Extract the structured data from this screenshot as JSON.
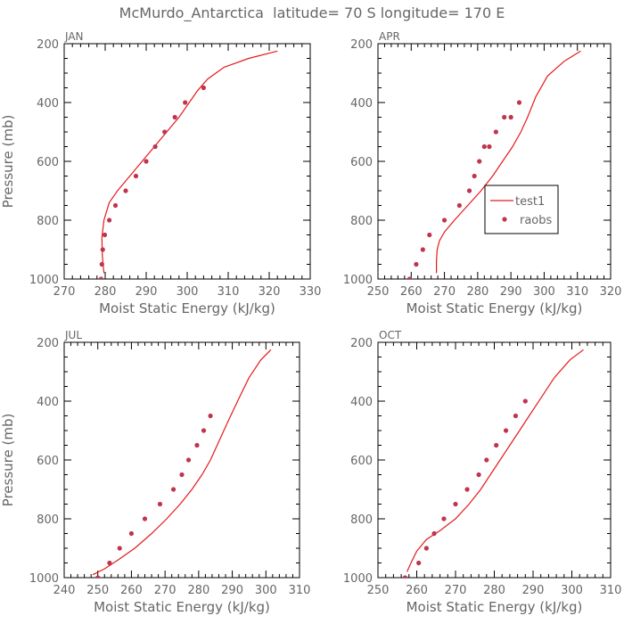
{
  "title": "McMurdo_Antarctica  latitude= 70 S longitude= 170 E",
  "colors": {
    "line": "#e41a1c",
    "markers": "#c0344d"
  },
  "legend": {
    "entries": [
      "test1",
      "raobs"
    ],
    "panel": "APR",
    "placement": "center-right"
  },
  "chart_data": [
    {
      "type": "line",
      "title": "JAN",
      "xlabel": "Moist Static Energy (kJ/kg)",
      "ylabel": "Pressure (mb)",
      "xlim": [
        270,
        330
      ],
      "ylim": [
        200,
        1000
      ],
      "xticks": [
        270,
        280,
        290,
        300,
        310,
        320,
        330
      ],
      "yticks": [
        200,
        400,
        600,
        800,
        1000
      ],
      "y_inverted": true,
      "series": [
        {
          "name": "test1",
          "style": "line",
          "x": [
            279.7,
            279.3,
            279.2,
            279.7,
            281.0,
            283.0,
            286.0,
            289.0,
            292.0,
            295.0,
            298.0,
            300.5,
            302.5,
            305.0,
            309.0,
            315.0,
            322.0
          ],
          "y": [
            980,
            920,
            860,
            800,
            740,
            700,
            650,
            600,
            550,
            500,
            450,
            400,
            360,
            320,
            280,
            250,
            225
          ]
        },
        {
          "name": "raobs",
          "style": "markers",
          "x": [
            279.0,
            279.2,
            279.4,
            279.9,
            281.0,
            282.5,
            285.0,
            287.5,
            290.0,
            292.2,
            294.5,
            297.0,
            299.5,
            304.0
          ],
          "y": [
            1000,
            950,
            900,
            850,
            800,
            750,
            700,
            650,
            600,
            550,
            500,
            450,
            400,
            350
          ]
        }
      ]
    },
    {
      "type": "line",
      "title": "APR",
      "xlabel": "Moist Static Energy (kJ/kg)",
      "ylabel": "",
      "xlim": [
        250,
        320
      ],
      "ylim": [
        200,
        1000
      ],
      "xticks": [
        250,
        260,
        270,
        280,
        290,
        300,
        310,
        320
      ],
      "yticks": [
        200,
        400,
        600,
        800,
        1000
      ],
      "y_inverted": true,
      "series": [
        {
          "name": "test1",
          "style": "line",
          "x": [
            267.6,
            267.6,
            267.8,
            268.5,
            270.0,
            273.0,
            277.0,
            281.0,
            284.5,
            287.5,
            290.5,
            293.0,
            295.0,
            297.5,
            301.0,
            306.0,
            311.0
          ],
          "y": [
            980,
            940,
            900,
            870,
            840,
            800,
            750,
            700,
            650,
            600,
            550,
            500,
            450,
            380,
            310,
            260,
            225
          ]
        },
        {
          "name": "raobs",
          "style": "markers",
          "x": [
            259.5,
            261.5,
            263.5,
            265.5,
            270.0,
            274.5,
            277.5,
            279.0,
            280.5,
            282.0,
            283.5,
            285.5,
            288.0,
            290.0,
            292.5
          ],
          "y": [
            1000,
            950,
            900,
            850,
            800,
            750,
            700,
            650,
            600,
            550,
            550,
            500,
            450,
            450,
            400
          ]
        }
      ]
    },
    {
      "type": "line",
      "title": "JUL",
      "xlabel": "Moist Static Energy (kJ/kg)",
      "ylabel": "Pressure (mb)",
      "xlim": [
        240,
        310
      ],
      "ylim": [
        200,
        1000
      ],
      "xticks": [
        240,
        250,
        260,
        270,
        280,
        290,
        300,
        310
      ],
      "yticks": [
        200,
        400,
        600,
        800,
        1000
      ],
      "y_inverted": true,
      "series": [
        {
          "name": "test1",
          "style": "line",
          "x": [
            248.5,
            252.0,
            256.0,
            261.0,
            266.0,
            270.5,
            274.5,
            278.0,
            281.0,
            283.5,
            285.5,
            287.5,
            289.5,
            292.0,
            295.0,
            298.5,
            301.5
          ],
          "y": [
            990,
            970,
            940,
            900,
            850,
            800,
            750,
            700,
            650,
            600,
            550,
            500,
            450,
            390,
            320,
            260,
            225
          ]
        },
        {
          "name": "raobs",
          "style": "markers",
          "x": [
            250.0,
            253.5,
            256.5,
            260.0,
            264.0,
            268.5,
            272.5,
            275.0,
            277.0,
            279.5,
            281.5,
            283.5
          ],
          "y": [
            1000,
            950,
            900,
            850,
            800,
            750,
            700,
            650,
            600,
            550,
            500,
            450
          ]
        }
      ]
    },
    {
      "type": "line",
      "title": "OCT",
      "xlabel": "Moist Static Energy (kJ/kg)",
      "ylabel": "",
      "xlim": [
        250,
        310
      ],
      "ylim": [
        200,
        1000
      ],
      "xticks": [
        250,
        260,
        270,
        280,
        290,
        300,
        310
      ],
      "yticks": [
        200,
        400,
        600,
        800,
        1000
      ],
      "y_inverted": true,
      "series": [
        {
          "name": "test1",
          "style": "line",
          "x": [
            257.5,
            258.5,
            260.0,
            262.5,
            266.0,
            270.0,
            273.5,
            276.5,
            279.0,
            281.5,
            284.0,
            286.5,
            289.0,
            292.0,
            295.5,
            299.5,
            303.0
          ],
          "y": [
            980,
            950,
            910,
            870,
            840,
            800,
            750,
            700,
            650,
            600,
            550,
            500,
            450,
            390,
            320,
            260,
            225
          ]
        },
        {
          "name": "raobs",
          "style": "markers",
          "x": [
            257.0,
            260.5,
            262.5,
            264.5,
            267.0,
            270.0,
            273.0,
            276.0,
            278.0,
            280.5,
            283.0,
            285.5,
            288.0
          ],
          "y": [
            1000,
            950,
            900,
            850,
            800,
            750,
            700,
            650,
            600,
            550,
            500,
            450,
            400
          ]
        }
      ]
    }
  ]
}
